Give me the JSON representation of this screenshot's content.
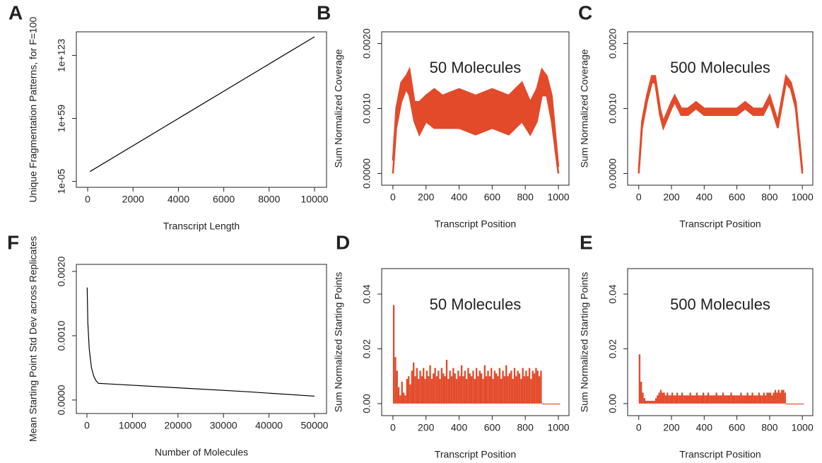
{
  "chart_data": [
    {
      "type": "line",
      "panel": "A",
      "xlabel": "Transcript Length",
      "ylabel": "Unique Fragmentation Patterns, for F=100",
      "x": [
        100,
        10000
      ],
      "series": [
        {
          "color": "#000000",
          "values": [
            100000.0,
            1e+142
          ]
        }
      ],
      "log_y": true,
      "xlim": [
        -500,
        10530
      ],
      "ylim": [
        1e-11,
        1e+147
      ],
      "xticks": [
        0,
        2000,
        4000,
        6000,
        8000,
        10000
      ],
      "yticks": [
        {
          "value": 1e-05,
          "label": "1e-05"
        },
        {
          "value": 1e+59,
          "label": "1e+59"
        },
        {
          "value": 1e+123,
          "label": "1e+123"
        }
      ]
    },
    {
      "type": "line",
      "panel": "B",
      "annotation": "50 Molecules",
      "xlabel": "Transcript Position",
      "ylabel": "Sum Normalized Coverage",
      "fill_between": true,
      "x": [
        0,
        20,
        50,
        80,
        100,
        130,
        160,
        200,
        250,
        300,
        400,
        500,
        600,
        700,
        780,
        830,
        870,
        900,
        930,
        960,
        1000
      ],
      "series": [
        {
          "color": "#e34a2a",
          "values": [
            0,
            0.0007,
            0.0011,
            0.0013,
            0.0012,
            0.0008,
            0.0006,
            0.0008,
            0.0007,
            0.0007,
            0.0007,
            0.0006,
            0.0007,
            0.0006,
            0.0008,
            0.0006,
            0.0008,
            0.0012,
            0.0012,
            0.0008,
            0
          ]
        },
        {
          "color": "#e34a2a",
          "values": [
            0.0002,
            0.001,
            0.0014,
            0.0015,
            0.0016,
            0.0011,
            0.0011,
            0.0012,
            0.0013,
            0.0012,
            0.0013,
            0.0012,
            0.0013,
            0.0012,
            0.0014,
            0.0011,
            0.0013,
            0.0016,
            0.0015,
            0.0012,
            0.0001
          ]
        }
      ],
      "xlim": [
        -68,
        1064
      ],
      "ylim": [
        -0.00018,
        0.00218
      ],
      "xticks": [
        0,
        200,
        400,
        600,
        800,
        1000
      ],
      "yticks": [
        {
          "value": 0,
          "label": "0.0000"
        },
        {
          "value": 0.001,
          "label": "0.0010"
        },
        {
          "value": 0.002,
          "label": "0.0020"
        }
      ]
    },
    {
      "type": "line",
      "panel": "C",
      "annotation": "500 Molecules",
      "xlabel": "Transcript Position",
      "ylabel": "Sum Normalized Coverage",
      "fill_between": true,
      "x": [
        0,
        20,
        50,
        80,
        100,
        130,
        150,
        200,
        220,
        260,
        300,
        350,
        400,
        500,
        600,
        650,
        700,
        760,
        800,
        850,
        900,
        930,
        960,
        1000
      ],
      "series": [
        {
          "color": "#e34a2a",
          "values": [
            0,
            0.0007,
            0.0011,
            0.0014,
            0.0014,
            0.0009,
            0.0007,
            0.001,
            0.0011,
            0.0009,
            0.0009,
            0.001,
            0.0009,
            0.0009,
            0.0009,
            0.001,
            0.0009,
            0.0009,
            0.0011,
            0.0007,
            0.0014,
            0.0013,
            0.001,
            0
          ]
        },
        {
          "color": "#e34a2a",
          "values": [
            5e-05,
            0.0008,
            0.0012,
            0.0015,
            0.0015,
            0.001,
            0.0008,
            0.0011,
            0.0012,
            0.001,
            0.001,
            0.0011,
            0.001,
            0.001,
            0.001,
            0.0011,
            0.001,
            0.001,
            0.0012,
            0.0008,
            0.0015,
            0.0014,
            0.0011,
            5e-05
          ]
        }
      ],
      "xlim": [
        -68,
        1064
      ],
      "ylim": [
        -0.00018,
        0.00218
      ],
      "xticks": [
        0,
        200,
        400,
        600,
        800,
        1000
      ],
      "yticks": [
        {
          "value": 0,
          "label": "0.0000"
        },
        {
          "value": 0.001,
          "label": "0.0010"
        },
        {
          "value": 0.002,
          "label": "0.0020"
        }
      ]
    },
    {
      "type": "line",
      "panel": "F",
      "xlabel": "Number of Molecules",
      "ylabel": "Mean Starting Point Std Dev across Replicates",
      "x": [
        50,
        200,
        500,
        1000,
        1500,
        2000,
        2500,
        5000,
        20000,
        35000,
        50000
      ],
      "series": [
        {
          "color": "#000000",
          "values": [
            0.00175,
            0.0012,
            0.0008,
            0.0005,
            0.00037,
            0.0003,
            0.00026,
            0.00025,
            0.00019,
            0.00013,
            6e-05
          ]
        }
      ],
      "xlim": [
        -2330,
        52640
      ],
      "ylim": [
        -0.00021,
        0.00211
      ],
      "xticks": [
        0,
        10000,
        20000,
        30000,
        40000,
        50000
      ],
      "yticks": [
        {
          "value": 0,
          "label": "0.0000"
        },
        {
          "value": 0.001,
          "label": "0.0010"
        },
        {
          "value": 0.002,
          "label": "0.0020"
        }
      ]
    },
    {
      "type": "bar",
      "panel": "D",
      "annotation": "50 Molecules",
      "xlabel": "Transcript Position",
      "ylabel": "Sum Normalized Starting Points",
      "color": "#e34a2a",
      "bar_width": 10,
      "x": [
        0,
        10,
        20,
        30,
        40,
        50,
        60,
        70,
        80,
        90,
        100,
        110,
        120,
        130,
        140,
        150,
        160,
        170,
        180,
        190,
        200,
        210,
        220,
        230,
        240,
        250,
        260,
        270,
        280,
        290,
        300,
        310,
        320,
        330,
        340,
        350,
        360,
        370,
        380,
        390,
        400,
        410,
        420,
        430,
        440,
        450,
        460,
        470,
        480,
        490,
        500,
        510,
        520,
        530,
        540,
        550,
        560,
        570,
        580,
        590,
        600,
        610,
        620,
        630,
        640,
        650,
        660,
        670,
        680,
        690,
        700,
        710,
        720,
        730,
        740,
        750,
        760,
        770,
        780,
        790,
        800,
        810,
        820,
        830,
        840,
        850,
        860,
        870,
        880,
        890,
        900,
        910,
        920,
        930,
        940,
        950,
        960,
        970,
        980,
        990,
        1000
      ],
      "values": [
        0.036,
        0.017,
        0.012,
        0.006,
        0.003,
        0.008,
        0.004,
        0.003,
        0.009,
        0.01,
        0.007,
        0.012,
        0.015,
        0.01,
        0.013,
        0.009,
        0.012,
        0.01,
        0.013,
        0.009,
        0.012,
        0.01,
        0.014,
        0.009,
        0.011,
        0.013,
        0.01,
        0.012,
        0.009,
        0.013,
        0.011,
        0.01,
        0.016,
        0.009,
        0.012,
        0.01,
        0.013,
        0.011,
        0.009,
        0.012,
        0.01,
        0.014,
        0.01,
        0.012,
        0.009,
        0.013,
        0.011,
        0.01,
        0.012,
        0.009,
        0.013,
        0.01,
        0.012,
        0.011,
        0.009,
        0.014,
        0.01,
        0.012,
        0.01,
        0.013,
        0.009,
        0.012,
        0.011,
        0.01,
        0.013,
        0.009,
        0.012,
        0.01,
        0.014,
        0.01,
        0.011,
        0.012,
        0.009,
        0.013,
        0.01,
        0.012,
        0.011,
        0.009,
        0.013,
        0.01,
        0.012,
        0.01,
        0.013,
        0.009,
        0.012,
        0.011,
        0.013,
        0.012,
        0.01,
        0.012,
        0,
        0,
        0,
        0,
        0,
        0,
        0,
        0,
        0,
        0,
        0
      ],
      "xlim": [
        -68,
        1064
      ],
      "ylim": [
        -0.0044,
        0.0493
      ],
      "xticks": [
        0,
        200,
        400,
        600,
        800,
        1000
      ],
      "yticks": [
        {
          "value": 0,
          "label": "0.00"
        },
        {
          "value": 0.02,
          "label": "0.02"
        },
        {
          "value": 0.04,
          "label": "0.04"
        }
      ]
    },
    {
      "type": "bar",
      "panel": "E",
      "annotation": "500 Molecules",
      "xlabel": "Transcript Position",
      "ylabel": "Sum Normalized Starting Points",
      "color": "#e34a2a",
      "bar_width": 10,
      "x": [
        0,
        10,
        20,
        30,
        40,
        50,
        60,
        70,
        80,
        90,
        100,
        110,
        120,
        130,
        140,
        150,
        160,
        170,
        180,
        190,
        200,
        210,
        220,
        230,
        240,
        250,
        260,
        270,
        280,
        290,
        300,
        310,
        320,
        330,
        340,
        350,
        360,
        370,
        380,
        390,
        400,
        410,
        420,
        430,
        440,
        450,
        460,
        470,
        480,
        490,
        500,
        510,
        520,
        530,
        540,
        550,
        560,
        570,
        580,
        590,
        600,
        610,
        620,
        630,
        640,
        650,
        660,
        670,
        680,
        690,
        700,
        710,
        720,
        730,
        740,
        750,
        760,
        770,
        780,
        790,
        800,
        810,
        820,
        830,
        840,
        850,
        860,
        870,
        880,
        890,
        900,
        910,
        920,
        930,
        940,
        950,
        960,
        970,
        980,
        990,
        1000
      ],
      "values": [
        0.018,
        0.008,
        0.004,
        0.002,
        0.001,
        0.001,
        0.001,
        0.001,
        0.001,
        0.001,
        0.002,
        0.003,
        0.004,
        0.005,
        0.004,
        0.004,
        0.003,
        0.004,
        0.003,
        0.003,
        0.004,
        0.003,
        0.003,
        0.004,
        0.003,
        0.003,
        0.004,
        0.003,
        0.003,
        0.003,
        0.003,
        0.004,
        0.003,
        0.003,
        0.003,
        0.004,
        0.003,
        0.003,
        0.003,
        0.004,
        0.003,
        0.003,
        0.004,
        0.003,
        0.003,
        0.003,
        0.003,
        0.004,
        0.003,
        0.003,
        0.003,
        0.004,
        0.003,
        0.003,
        0.003,
        0.003,
        0.004,
        0.003,
        0.003,
        0.003,
        0.003,
        0.003,
        0.004,
        0.003,
        0.003,
        0.003,
        0.004,
        0.003,
        0.003,
        0.004,
        0.003,
        0.003,
        0.003,
        0.004,
        0.003,
        0.003,
        0.004,
        0.003,
        0.004,
        0.004,
        0.004,
        0.003,
        0.004,
        0.005,
        0.004,
        0.005,
        0.004,
        0.005,
        0.005,
        0.004,
        0,
        0,
        0,
        0,
        0,
        0,
        0,
        0,
        0,
        0,
        0
      ],
      "xlim": [
        -68,
        1064
      ],
      "ylim": [
        -0.0044,
        0.0493
      ],
      "xticks": [
        0,
        200,
        400,
        600,
        800,
        1000
      ],
      "yticks": [
        {
          "value": 0,
          "label": "0.00"
        },
        {
          "value": 0.02,
          "label": "0.02"
        },
        {
          "value": 0.04,
          "label": "0.04"
        }
      ]
    }
  ]
}
